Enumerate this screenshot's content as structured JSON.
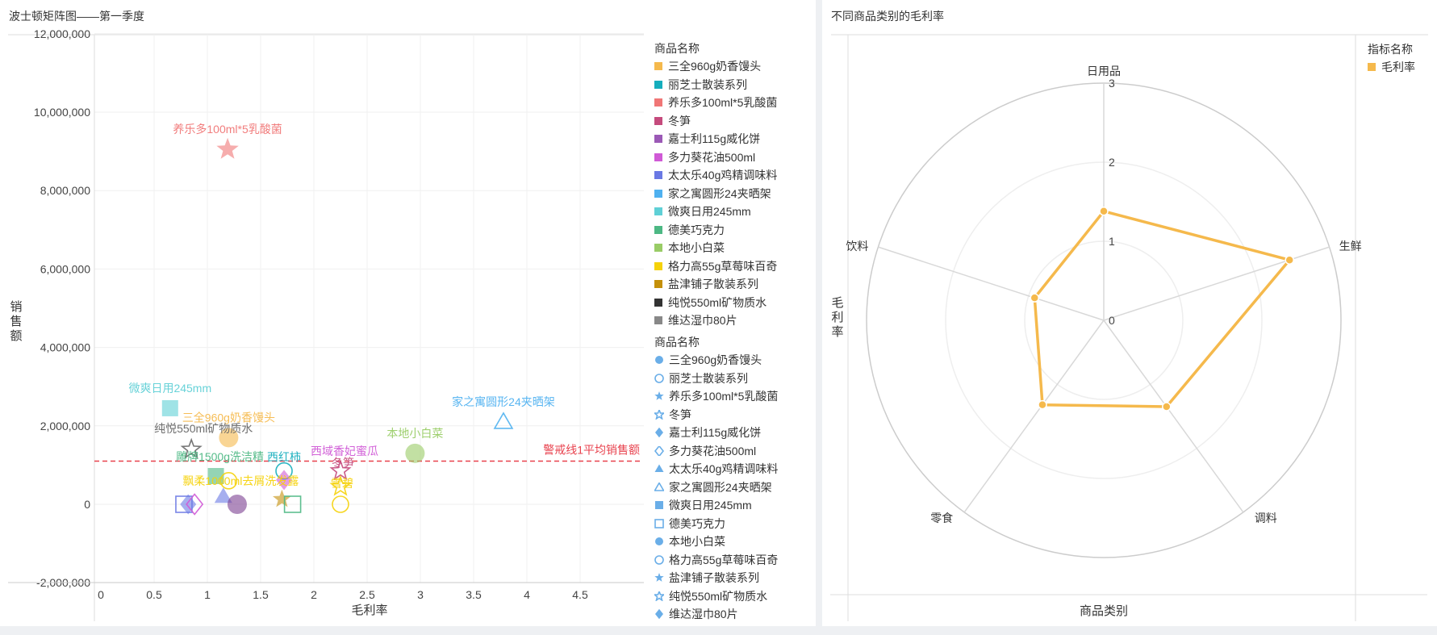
{
  "left": {
    "title": "波士顿矩阵图——第一季度",
    "legend_color_title": "商品名称",
    "legend_shape_title": "商品名称",
    "legend_color_items": [
      {
        "label": "三全960g奶香馒头",
        "color": "#f5b94c"
      },
      {
        "label": "丽芝士散装系列",
        "color": "#15aebd"
      },
      {
        "label": "养乐多100ml*5乳酸菌",
        "color": "#f07676"
      },
      {
        "label": "冬笋",
        "color": "#c54b7d"
      },
      {
        "label": "嘉士利115g威化饼",
        "color": "#9b59b6"
      },
      {
        "label": "多力葵花油500ml",
        "color": "#d05ad6"
      },
      {
        "label": "太太乐40g鸡精调味料",
        "color": "#6a79e4"
      },
      {
        "label": "家之寓圆形24夹晒架",
        "color": "#4fb1f0"
      },
      {
        "label": "微爽日用245mm",
        "color": "#5fd0d6"
      },
      {
        "label": "德美巧克力",
        "color": "#4db884"
      },
      {
        "label": "本地小白菜",
        "color": "#99cc66"
      },
      {
        "label": "格力高55g草莓味百奇",
        "color": "#f5d20a"
      },
      {
        "label": "盐津铺子散装系列",
        "color": "#c4900a"
      },
      {
        "label": "纯悦550ml矿物质水",
        "color": "#333333"
      },
      {
        "label": "维达湿巾80片",
        "color": "#888888"
      }
    ],
    "legend_shape_items": [
      {
        "label": "三全960g奶香馒头",
        "shape": "circle-filled"
      },
      {
        "label": "丽芝士散装系列",
        "shape": "circle-hollow"
      },
      {
        "label": "养乐多100ml*5乳酸菌",
        "shape": "star-filled"
      },
      {
        "label": "冬笋",
        "shape": "star-hollow"
      },
      {
        "label": "嘉士利115g威化饼",
        "shape": "diamond-filled"
      },
      {
        "label": "多力葵花油500ml",
        "shape": "diamond-hollow"
      },
      {
        "label": "太太乐40g鸡精调味料",
        "shape": "triangle-filled"
      },
      {
        "label": "家之寓圆形24夹晒架",
        "shape": "triangle-hollow"
      },
      {
        "label": "微爽日用245mm",
        "shape": "square-filled"
      },
      {
        "label": "德美巧克力",
        "shape": "square-hollow"
      },
      {
        "label": "本地小白菜",
        "shape": "circle-filled"
      },
      {
        "label": "格力高55g草莓味百奇",
        "shape": "circle-hollow"
      },
      {
        "label": "盐津铺子散装系列",
        "shape": "star-filled"
      },
      {
        "label": "纯悦550ml矿物质水",
        "shape": "star-hollow"
      },
      {
        "label": "维达湿巾80片",
        "shape": "diamond-filled"
      }
    ],
    "legend_shape_color": "#6aaee8",
    "warning_label": "警戒线1平均销售额",
    "warning_color": "#e8424e"
  },
  "chart_data": [
    {
      "type": "scatter",
      "title": "波士顿矩阵图——第一季度",
      "xlabel": "毛利率",
      "ylabel": "销售额",
      "xlim": [
        0,
        4.5
      ],
      "ylim": [
        -2000000,
        12000000
      ],
      "x_ticks": [
        0,
        0.5,
        1,
        1.5,
        2,
        2.5,
        3,
        3.5,
        4,
        4.5
      ],
      "x_tick_labels": [
        "0",
        "0.5",
        "1",
        "1.5",
        "2",
        "2.5",
        "3",
        "3.5",
        "4",
        "4.5"
      ],
      "y_ticks": [
        -2000000,
        0,
        2000000,
        4000000,
        6000000,
        8000000,
        10000000,
        12000000
      ],
      "y_tick_labels": [
        "-2,000,000",
        "0",
        "2,000,000",
        "4,000,000",
        "6,000,000",
        "8,000,000",
        "10,000,000",
        "12,000,000"
      ],
      "grid": true,
      "reference_line": {
        "label": "警戒线1平均销售额",
        "y": 1100000
      },
      "points": [
        {
          "name": "养乐多100ml*5乳酸菌",
          "x": 1.19,
          "y": 9050000,
          "shape": "star",
          "color": "#f07676",
          "label": "养乐多100ml*5乳酸菌"
        },
        {
          "name": "微爽日用245mm",
          "x": 0.65,
          "y": 2450000,
          "shape": "square",
          "color": "#5fd0d6",
          "label": "微爽日用245mm"
        },
        {
          "name": "三全960g奶香馒头",
          "x": 1.2,
          "y": 1700000,
          "shape": "circle",
          "color": "#f5b94c",
          "label": "三全960g奶香馒头"
        },
        {
          "name": "纯悦550ml矿物质水",
          "x": 0.85,
          "y": 1400000,
          "shape": "star-hollow",
          "color": "#666666",
          "label": "纯悦550ml矿物质水"
        },
        {
          "name": "家之寓圆形24夹晒架",
          "x": 3.78,
          "y": 2100000,
          "shape": "triangle-hollow",
          "color": "#4fb1f0",
          "label": "家之寓圆形24夹晒架"
        },
        {
          "name": "本地小白菜",
          "x": 2.95,
          "y": 1300000,
          "shape": "circle",
          "color": "#99cc66",
          "label": "本地小白菜"
        },
        {
          "name": "雕牌1500g洗洁精",
          "x": 1.08,
          "y": 720000,
          "shape": "square",
          "color": "#4db884",
          "label": "雕牌1500g洗洁精"
        },
        {
          "name": "西红柿",
          "x": 1.72,
          "y": 850000,
          "shape": "circle-hollow",
          "color": "#15aebd",
          "label": "西红柿"
        },
        {
          "name": "西域香妃蜜瓜",
          "x": 1.72,
          "y": 620000,
          "shape": "diamond",
          "color": "#d05ad6",
          "label": "西域香妃蜜瓜"
        },
        {
          "name": "冬笋",
          "x": 2.25,
          "y": 850000,
          "shape": "star-hollow",
          "color": "#c54b7d",
          "label": "冬笋"
        },
        {
          "name": "雪碧",
          "x": 2.25,
          "y": 450000,
          "shape": "star-hollow",
          "color": "#f5d20a",
          "label": "雪碧"
        },
        {
          "name": "飘柔1000ml去屑洗发露",
          "x": 1.2,
          "y": 600000,
          "shape": "circle-hollow",
          "color": "#f5d20a",
          "label": "飘柔1000ml去屑洗发露"
        },
        {
          "name": "太太乐40g鸡精调味料",
          "x": 1.15,
          "y": 200000,
          "shape": "triangle",
          "color": "#6a79e4",
          "label": ""
        },
        {
          "name": "嘉士利115g威化饼",
          "x": 1.28,
          "y": 0,
          "shape": "circle",
          "color": "#7b3f91",
          "label": ""
        },
        {
          "name": "盐津铺子散装系列",
          "x": 1.7,
          "y": 130000,
          "shape": "star",
          "color": "#c4900a",
          "label": ""
        },
        {
          "name": "德美巧克力",
          "x": 1.8,
          "y": 0,
          "shape": "square-hollow",
          "color": "#4db884",
          "label": ""
        },
        {
          "name": "丽芝士散装系列",
          "x": 0.78,
          "y": 0,
          "shape": "square-hollow",
          "color": "#6a79e4",
          "label": ""
        },
        {
          "name": "维达湿巾80片",
          "x": 0.82,
          "y": 0,
          "shape": "diamond",
          "color": "#6a79e4",
          "label": ""
        },
        {
          "name": "多力葵花油500ml",
          "x": 0.88,
          "y": 0,
          "shape": "diamond-hollow",
          "color": "#d05ad6",
          "label": ""
        },
        {
          "name": "格力高55g草莓味百奇",
          "x": 2.25,
          "y": 0,
          "shape": "circle-hollow",
          "color": "#f5d20a",
          "label": ""
        }
      ]
    },
    {
      "type": "radar",
      "title": "不同商品类别的毛利率",
      "xlabel": "商品类别",
      "ylabel": "毛利率",
      "axis_max": 3,
      "ring_ticks": [
        0,
        1,
        2,
        3
      ],
      "categories": [
        "日用品",
        "生鲜",
        "调料",
        "零食",
        "饮料"
      ],
      "series": [
        {
          "name": "毛利率",
          "values": [
            1.38,
            2.47,
            1.35,
            1.32,
            0.92
          ],
          "color": "#f5b94c"
        }
      ]
    }
  ],
  "right": {
    "title": "不同商品类别的毛利率",
    "legend_title": "指标名称",
    "legend_items": [
      {
        "label": "毛利率",
        "color": "#f5b94c"
      }
    ],
    "xlabel": "商品类别",
    "ylabel": "毛利率"
  }
}
